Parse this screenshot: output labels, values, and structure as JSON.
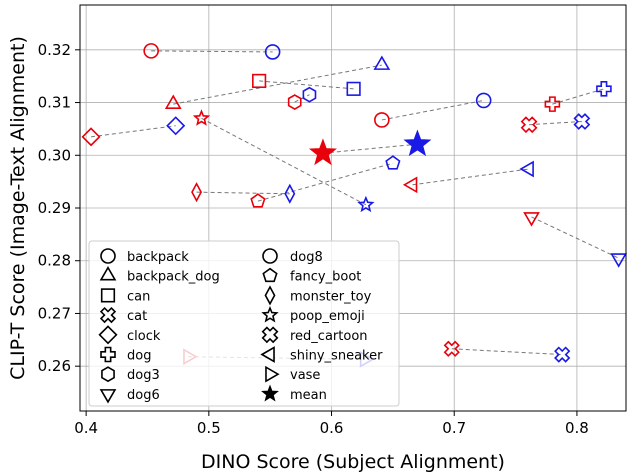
{
  "chart_data": {
    "type": "scatter",
    "title": "",
    "xlabel": "DINO Score (Subject Alignment)",
    "ylabel": "CLIP-T Score (Image-Text Alignment)",
    "xlim": [
      0.395,
      0.84
    ],
    "ylim": [
      0.2515,
      0.3285
    ],
    "xticks": [
      "0.4",
      "0.5",
      "0.6",
      "0.7",
      "0.8"
    ],
    "yticks": [
      "0.26",
      "0.27",
      "0.28",
      "0.29",
      "0.30",
      "0.31",
      "0.32"
    ],
    "grid": true,
    "legend_position": "lower-left",
    "colors": {
      "series_a": "#e8000b",
      "series_b": "#1a1ae6",
      "connector": "#777777"
    },
    "pairs": [
      {
        "subject": "backpack",
        "marker": "circle",
        "red": [
          0.453,
          0.3198
        ],
        "blue": [
          0.552,
          0.3196
        ]
      },
      {
        "subject": "backpack_dog",
        "marker": "triangle-up",
        "red": [
          0.471,
          0.3097
        ],
        "blue": [
          0.641,
          0.3171
        ]
      },
      {
        "subject": "can",
        "marker": "square",
        "red": [
          0.541,
          0.3141
        ],
        "blue": [
          0.618,
          0.3126
        ]
      },
      {
        "subject": "cat",
        "marker": "x-cross",
        "red": [
          0.698,
          0.2633
        ],
        "blue": [
          0.788,
          0.2622
        ]
      },
      {
        "subject": "clock",
        "marker": "diamond",
        "red": [
          0.404,
          0.3035
        ],
        "blue": [
          0.473,
          0.3056
        ]
      },
      {
        "subject": "dog",
        "marker": "plus",
        "red": [
          0.78,
          0.3097
        ],
        "blue": [
          0.822,
          0.3126
        ]
      },
      {
        "subject": "dog3",
        "marker": "hexagon",
        "red": [
          0.57,
          0.3101
        ],
        "blue": [
          0.582,
          0.3115
        ]
      },
      {
        "subject": "dog6",
        "marker": "triangle-down",
        "red": [
          0.763,
          0.2883
        ],
        "blue": [
          0.834,
          0.2805
        ]
      },
      {
        "subject": "dog8",
        "marker": "circle",
        "red": [
          0.641,
          0.3067
        ],
        "blue": [
          0.724,
          0.3104
        ]
      },
      {
        "subject": "fancy_boot",
        "marker": "pentagon",
        "red": [
          0.54,
          0.2913
        ],
        "blue": [
          0.65,
          0.2985
        ]
      },
      {
        "subject": "monster_toy",
        "marker": "thin-diamond",
        "red": [
          0.49,
          0.293
        ],
        "blue": [
          0.566,
          0.2927
        ]
      },
      {
        "subject": "poop_emoji",
        "marker": "star-open",
        "red": [
          0.494,
          0.307
        ],
        "blue": [
          0.628,
          0.2906
        ]
      },
      {
        "subject": "red_cartoon",
        "marker": "x-cross-thick",
        "red": [
          0.761,
          0.3058
        ],
        "blue": [
          0.804,
          0.3064
        ]
      },
      {
        "subject": "shiny_sneaker",
        "marker": "triangle-left",
        "red": [
          0.666,
          0.2944
        ],
        "blue": [
          0.761,
          0.2974
        ]
      },
      {
        "subject": "vase",
        "marker": "triangle-right",
        "red": [
          0.483,
          0.2618
        ],
        "blue": [
          0.627,
          0.2613
        ]
      },
      {
        "subject": "mean",
        "marker": "star-filled",
        "red": [
          0.593,
          0.3004
        ],
        "blue": [
          0.67,
          0.3021
        ]
      }
    ],
    "legend": [
      {
        "label": "backpack",
        "marker": "circle"
      },
      {
        "label": "backpack_dog",
        "marker": "triangle-up"
      },
      {
        "label": "can",
        "marker": "square"
      },
      {
        "label": "cat",
        "marker": "x-cross"
      },
      {
        "label": "clock",
        "marker": "diamond"
      },
      {
        "label": "dog",
        "marker": "plus"
      },
      {
        "label": "dog3",
        "marker": "hexagon"
      },
      {
        "label": "dog6",
        "marker": "triangle-down"
      },
      {
        "label": "dog8",
        "marker": "circle"
      },
      {
        "label": "fancy_boot",
        "marker": "pentagon"
      },
      {
        "label": "monster_toy",
        "marker": "thin-diamond"
      },
      {
        "label": "poop_emoji",
        "marker": "star-open"
      },
      {
        "label": "red_cartoon",
        "marker": "x-cross-thick"
      },
      {
        "label": "shiny_sneaker",
        "marker": "triangle-left"
      },
      {
        "label": "vase",
        "marker": "triangle-right"
      },
      {
        "label": "mean",
        "marker": "star-filled"
      }
    ]
  }
}
